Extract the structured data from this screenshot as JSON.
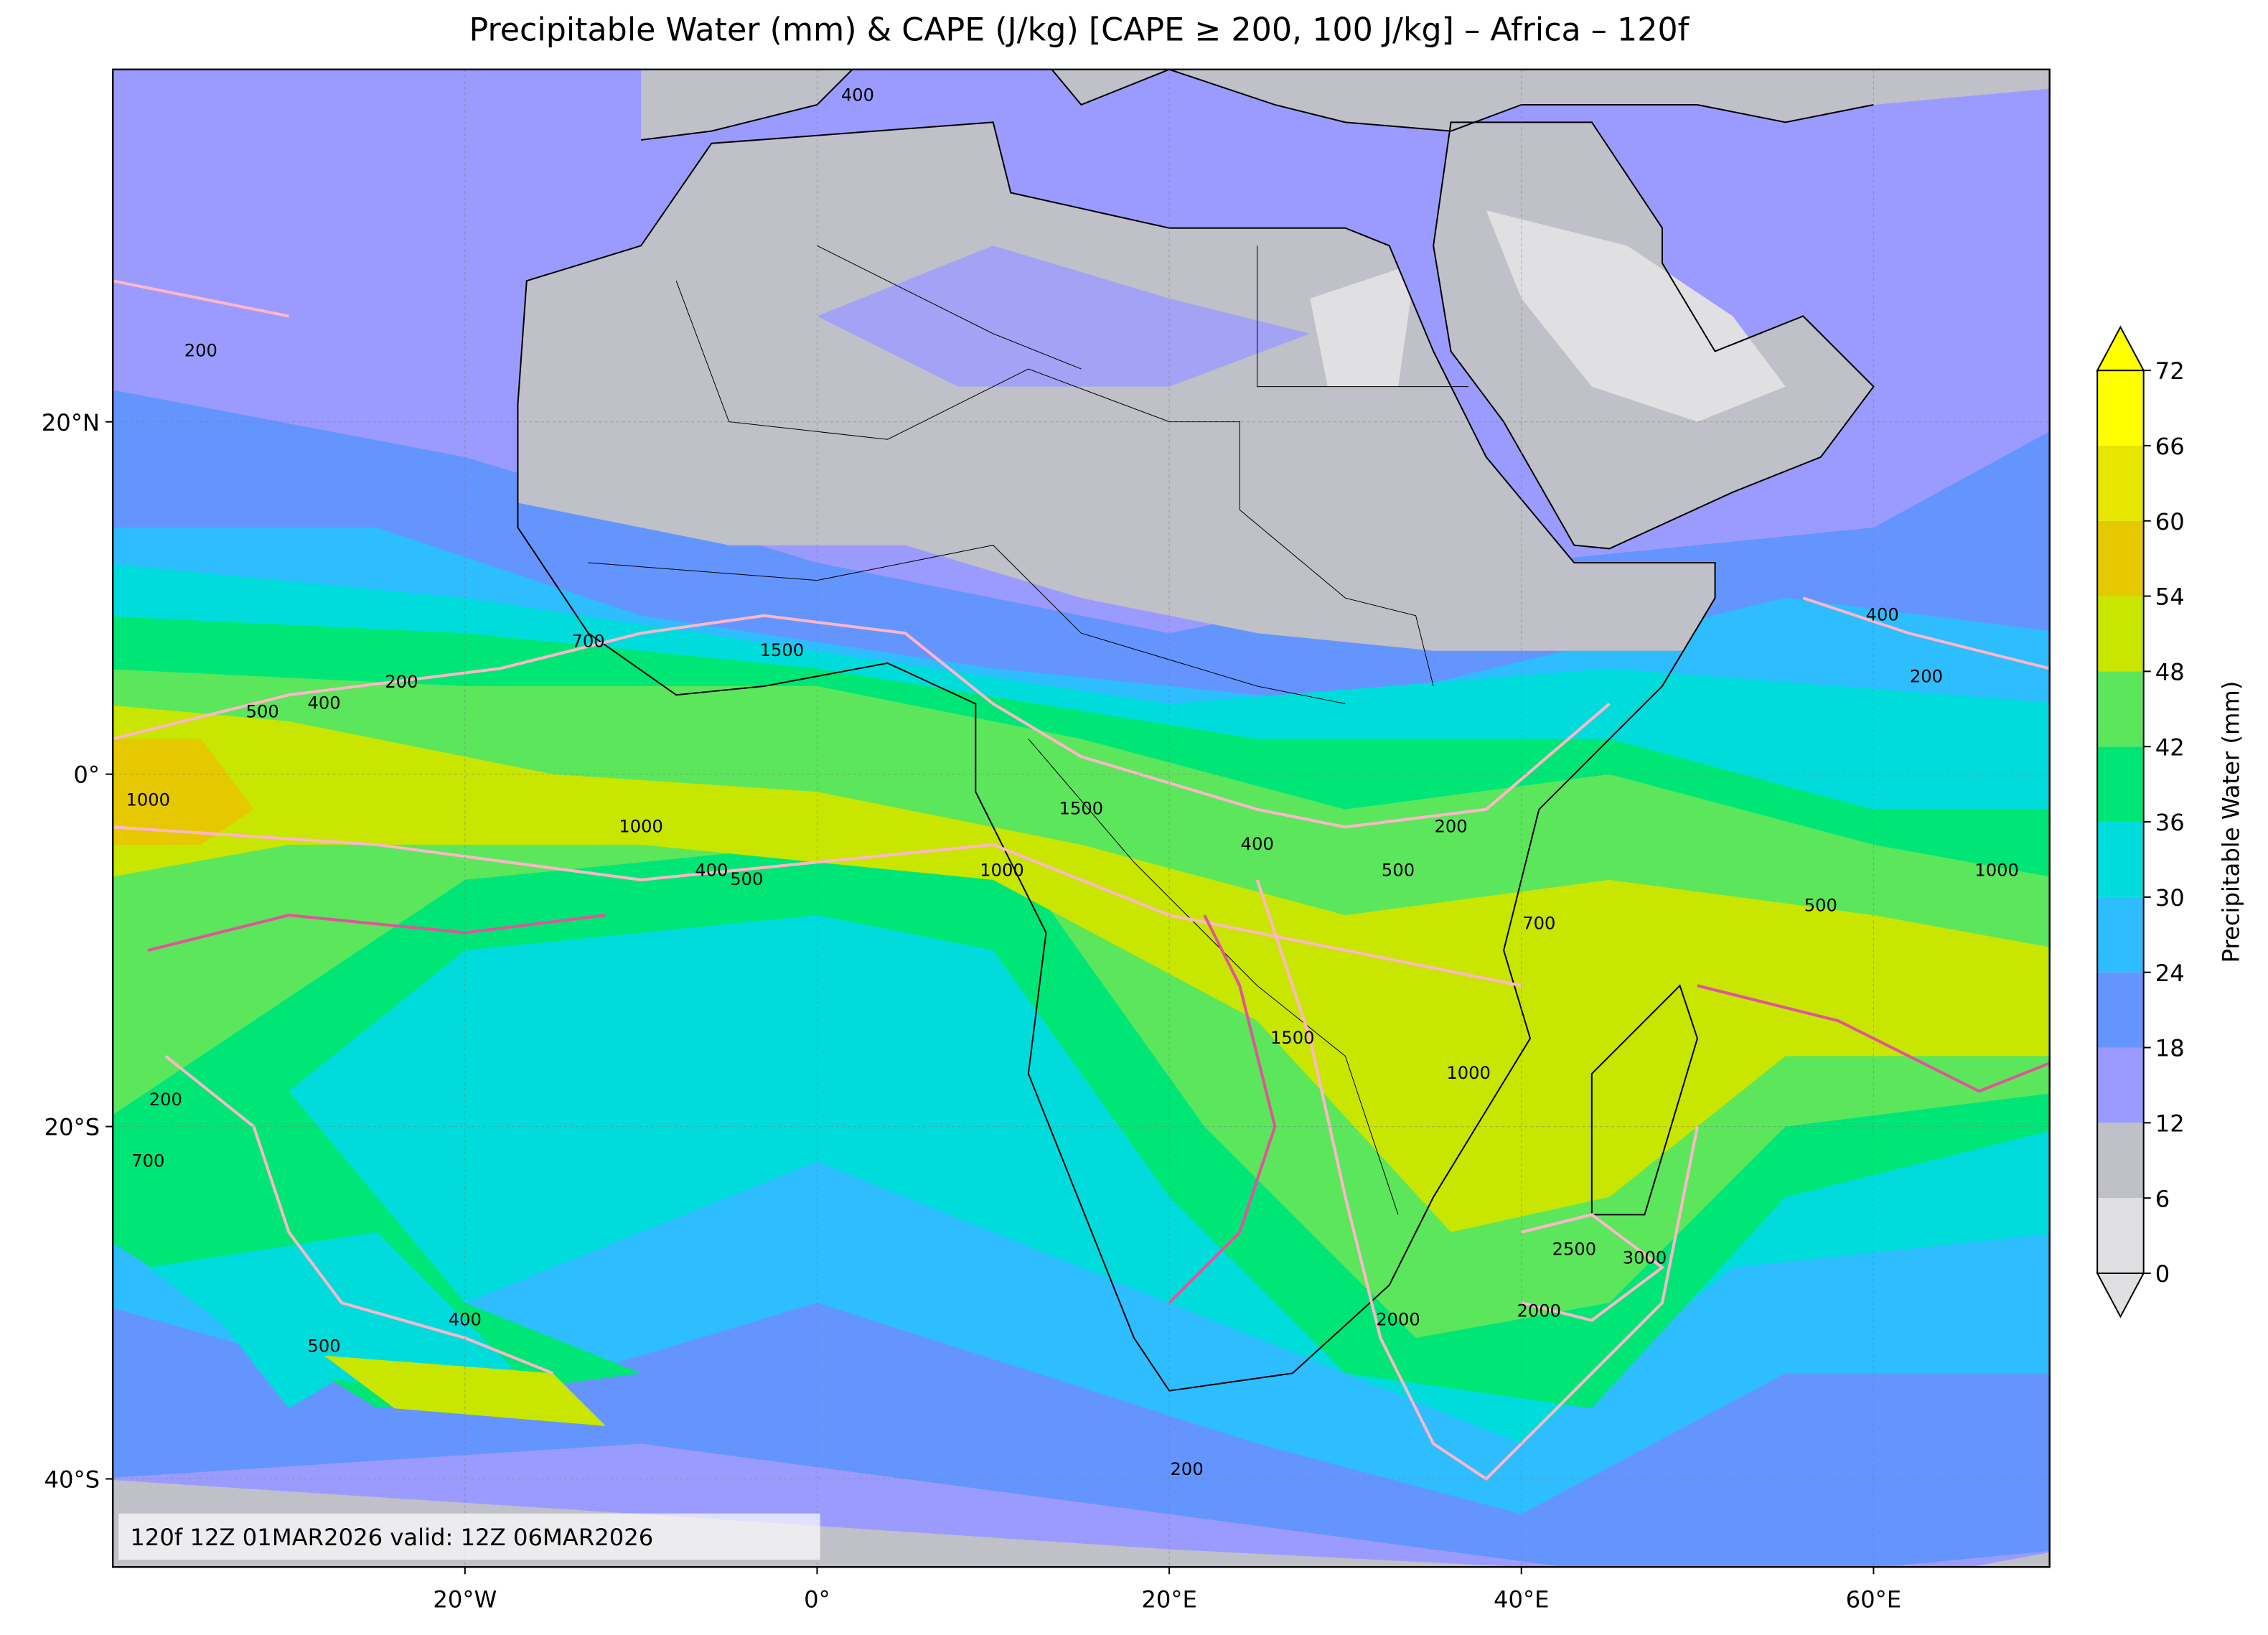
{
  "chart_data": {
    "type": "map",
    "title": "Precipitable Water (mm) & CAPE (J/kg) [CAPE ≥ 200, 100 J/kg] – Africa – 120f",
    "annotation": "120f 12Z 01MAR2026 valid: 12Z 06MAR2026",
    "xlim": [
      -40,
      70
    ],
    "ylim": [
      -45,
      40
    ],
    "xticks": [
      {
        "value": -20,
        "label": "20°W"
      },
      {
        "value": 0,
        "label": "0°"
      },
      {
        "value": 20,
        "label": "20°E"
      },
      {
        "value": 40,
        "label": "40°E"
      },
      {
        "value": 60,
        "label": "60°E"
      }
    ],
    "yticks": [
      {
        "value": 20,
        "label": "20°N"
      },
      {
        "value": 0,
        "label": "0°"
      },
      {
        "value": -20,
        "label": "20°S"
      },
      {
        "value": -40,
        "label": "40°S"
      }
    ],
    "grid": true,
    "colorbar": {
      "label": "Precipitable Water (mm)",
      "lim": [
        0,
        72
      ],
      "ticks": [
        0,
        6,
        12,
        18,
        24,
        30,
        36,
        42,
        48,
        54,
        60,
        66,
        72
      ],
      "colors": [
        "#e0e0e2",
        "#bfc0c8",
        "#9b9bff",
        "#6495ff",
        "#2ebdff",
        "#00dcdc",
        "#00e676",
        "#5ce65c",
        "#c8e600",
        "#e6c800",
        "#e6e600",
        "#ffff00"
      ],
      "under_color": "#e0e0e2",
      "over_color": "#ffff00"
    },
    "contour_color": "#ffb6c8",
    "contour_labels": [
      400,
      200,
      200,
      400,
      500,
      1000,
      700,
      1500,
      1000,
      400,
      500,
      1500,
      1000,
      400,
      500,
      200,
      700,
      1500,
      1000,
      2500,
      3000,
      2000,
      2000,
      400,
      200,
      1000,
      500,
      200,
      400,
      500,
      700,
      200
    ]
  }
}
